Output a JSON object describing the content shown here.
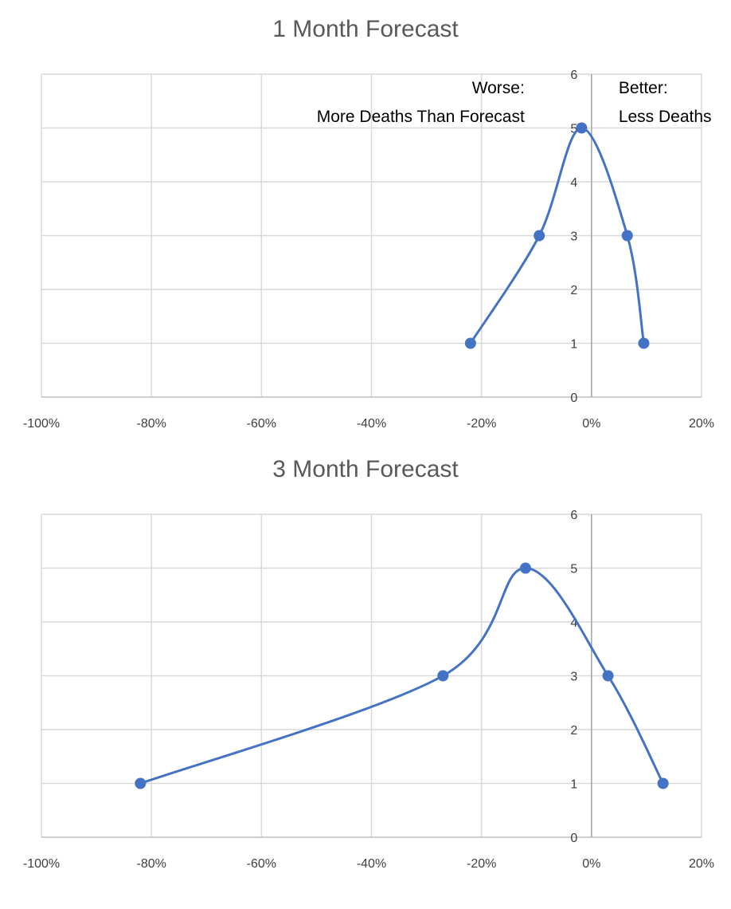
{
  "chart_data": [
    {
      "type": "scatter",
      "title": "1 Month Forecast",
      "xlim": [
        -1.0,
        0.2
      ],
      "ylim": [
        0,
        6
      ],
      "x_ticks": [
        "-100%",
        "-80%",
        "-60%",
        "-40%",
        "-20%",
        "0%",
        "20%"
      ],
      "y_ticks": [
        "0",
        "1",
        "2",
        "3",
        "4",
        "5",
        "6"
      ],
      "grid": true,
      "series": [
        {
          "x": [
            -0.22,
            -0.095,
            -0.018,
            0.065,
            0.095
          ],
          "y": [
            1,
            3,
            5,
            3,
            1
          ]
        }
      ],
      "line_color": "#4472C4",
      "annotations": [
        {
          "lines": [
            "Worse:",
            "More Deaths Than Forecast"
          ]
        },
        {
          "lines": [
            "Better:",
            "Less Deaths"
          ]
        }
      ]
    },
    {
      "type": "scatter",
      "title": "3 Month Forecast",
      "xlim": [
        -1.0,
        0.2
      ],
      "ylim": [
        0,
        6
      ],
      "x_ticks": [
        "-100%",
        "-80%",
        "-60%",
        "-40%",
        "-20%",
        "0%",
        "20%"
      ],
      "y_ticks": [
        "0",
        "1",
        "2",
        "3",
        "4",
        "5",
        "6"
      ],
      "grid": true,
      "series": [
        {
          "x": [
            -0.82,
            -0.27,
            -0.12,
            0.03,
            0.13
          ],
          "y": [
            1,
            3,
            5,
            3,
            1
          ]
        }
      ],
      "line_color": "#4472C4"
    }
  ]
}
